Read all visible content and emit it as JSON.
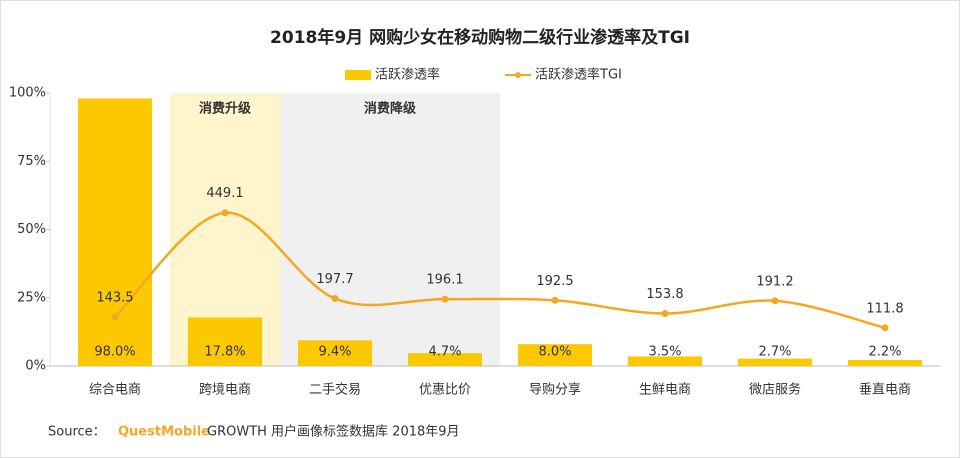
{
  "chart_data": {
    "type": "bar_line",
    "title": "2018年9月 网购少女在移动购物二级行业渗透率及TGI",
    "categories": [
      "综合电商",
      "跨境电商",
      "二手交易",
      "优惠比价",
      "导购分享",
      "生鲜电商",
      "微店服务",
      "垂直电商"
    ],
    "series": [
      {
        "name": "活跃渗透率",
        "type": "bar",
        "color": "#fcc800",
        "values": [
          98.0,
          17.8,
          9.4,
          4.7,
          8.0,
          3.5,
          2.7,
          2.2
        ],
        "value_labels": [
          "98.0%",
          "17.8%",
          "9.4%",
          "4.7%",
          "8.0%",
          "3.5%",
          "2.7%",
          "2.2%"
        ]
      },
      {
        "name": "活跃渗透率TGI",
        "type": "line",
        "axis": "y2",
        "color": "#f5a623",
        "values": [
          143.5,
          449.1,
          197.7,
          196.1,
          192.5,
          153.8,
          191.2,
          111.8
        ]
      }
    ],
    "ylim": [
      0,
      100
    ],
    "yticks": [
      {
        "value": 0,
        "label": "0%"
      },
      {
        "value": 25,
        "label": "25%"
      },
      {
        "value": 50,
        "label": "50%"
      },
      {
        "value": 75,
        "label": "75%"
      },
      {
        "value": 100,
        "label": "100%"
      }
    ],
    "y2lim": [
      0,
      800
    ],
    "grid": false,
    "legend": "top",
    "regions": [
      {
        "label": "消费升级",
        "start": 1,
        "end": 1,
        "color": "#fff5cc"
      },
      {
        "label": "消费降级",
        "start": 2,
        "end": 3,
        "color": "#f0f0f0"
      }
    ],
    "source": {
      "prefix": "Source：",
      "brand": "QuestMobile",
      "text": "GROWTH 用户画像标签数据库 2018年9月"
    }
  }
}
